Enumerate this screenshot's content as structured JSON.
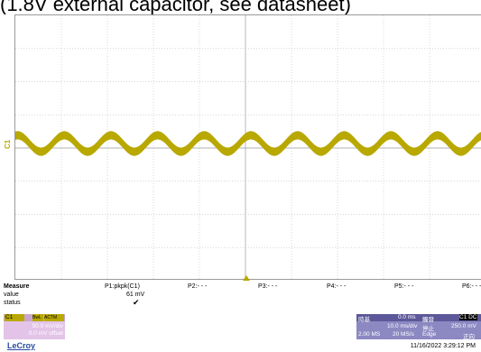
{
  "header": {
    "title": "(1.8V external capacitor, see datasheet)"
  },
  "scope": {
    "channel_marker": "C1",
    "trace_color": "#b8a800",
    "grid_color": "#c8c8c8",
    "waveform": {
      "cycles": 10,
      "amplitude_divs": 0.55,
      "band_divs": 0.25
    }
  },
  "measure": {
    "title": "Measure",
    "labels": [
      "value",
      "status"
    ],
    "params": [
      {
        "name": "P1:pkpk(C1)",
        "value": "61 mV",
        "status": "✔"
      },
      {
        "name": "P2:- - -",
        "value": "",
        "status": ""
      },
      {
        "name": "P3:- - -",
        "value": "",
        "status": ""
      },
      {
        "name": "P4:- - -",
        "value": "",
        "status": ""
      },
      {
        "name": "P5:- - -",
        "value": "",
        "status": ""
      },
      {
        "name": "P6:- - -",
        "value": "",
        "status": ""
      }
    ]
  },
  "channel": {
    "tag": "C1",
    "badges": [
      "BwL",
      "ACTM"
    ],
    "scale": "50.0 mV/div",
    "offset": "0.0 mV offset"
  },
  "timebase": {
    "label": "時基",
    "delay": "0.0 ms",
    "scale": "10.0 ms/div",
    "samples": "2.00 MS",
    "rate": "20 MS/s"
  },
  "trigger": {
    "label": "觸發",
    "source": "C1 DC",
    "mode": "停止",
    "level": "250.0 mV",
    "type": "Edge",
    "slope": "正向"
  },
  "brand": "LeCroy",
  "datetime": "11/16/2022 3:29:12 PM"
}
